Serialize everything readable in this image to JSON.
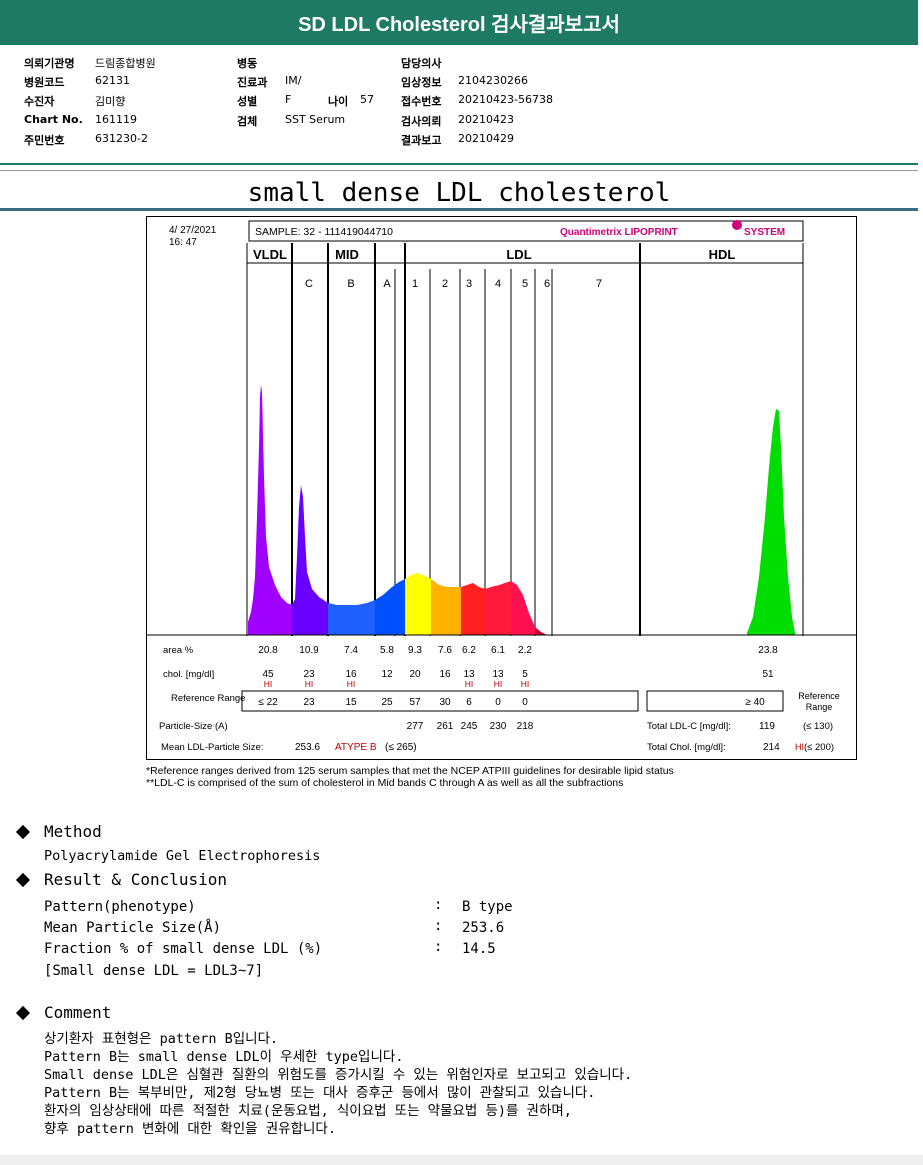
{
  "header": {
    "title": "SD LDL Cholesterol 검사결과보고서"
  },
  "info": [
    {
      "label": "의뢰기관명",
      "value": "드림종합병원"
    },
    {
      "label": "병원코드",
      "value": "62131"
    },
    {
      "label": "수진자",
      "value": "김미향"
    },
    {
      "label": "Chart No.",
      "value": "161119"
    },
    {
      "label": "주민번호",
      "value": "631230-2"
    },
    {
      "label": "병동",
      "value": ""
    },
    {
      "label": "진료과",
      "value": "IM/"
    },
    {
      "label": "성별",
      "value": "F"
    },
    {
      "label": "나이",
      "value": "57"
    },
    {
      "label": "검체",
      "value": "SST Serum"
    },
    {
      "label": "담당의사",
      "value": ""
    },
    {
      "label": "임상정보",
      "value": "2104230266"
    },
    {
      "label": "접수번호",
      "value": "20210423-56738"
    },
    {
      "label": "검사의뢰",
      "value": "20210423"
    },
    {
      "label": "결과보고",
      "value": "20210429"
    }
  ],
  "report_title": "small dense LDL cholesterol",
  "chart_data": {
    "type": "area",
    "date": "4/ 27/2021",
    "time": "16: 47",
    "sample": "SAMPLE:   32 - 111419044710",
    "brand": "Quantimetrix LIPOPRINT",
    "brand_suffix": "SYSTEM",
    "groups": [
      "VLDL",
      "MID",
      "LDL",
      "HDL"
    ],
    "bands": [
      "C",
      "B",
      "A",
      "1",
      "2",
      "3",
      "4",
      "5",
      "6",
      "7"
    ],
    "band_colors": [
      "#a000ff",
      "#3a00e8",
      "#0070ff",
      "#0050ff",
      "#ffff00",
      "#ffb000",
      "#ff1e1e",
      "#ff1e40",
      "#ff1e58",
      "#00dd00"
    ],
    "row_labels": {
      "area": "area %",
      "chol": "chol. [mg/dl]",
      "ref": "Reference Range",
      "ref_right": "Reference Range",
      "particle": "Particle-Size (A)",
      "mean": "Mean LDL-Particle Size:"
    },
    "area_pct": [
      "20.8",
      "10.9",
      "7.4",
      "5.8",
      "9.3",
      "7.6",
      "6.2",
      "6.1",
      "2.2",
      "23.8"
    ],
    "chol": [
      "45",
      "23",
      "16",
      "12",
      "20",
      "16",
      "13",
      "13",
      "5",
      "51"
    ],
    "hi_flags": [
      "HI",
      "HI",
      "HI",
      "",
      "",
      "",
      "HI",
      "HI",
      "HI",
      ""
    ],
    "ref_range": [
      "≤ 22",
      "23",
      "15",
      "25",
      "57",
      "30",
      "6",
      "0",
      "0",
      "≥ 40"
    ],
    "particle_size": [
      "277",
      "261",
      "245",
      "230",
      "218"
    ],
    "mean_size": "253.6",
    "mean_type": "ATYPE B",
    "mean_limit": "(≤ 265)",
    "total_ldl_label": "Total LDL-C [mg/dl]:",
    "total_ldl": "119",
    "total_ldl_limit": "(≤ 130)",
    "total_chol_label": "Total Chol. [mg/dl]:",
    "total_chol": "214",
    "total_chol_flag": "HI",
    "total_chol_limit": "(≤ 200)"
  },
  "footnotes": [
    "*Reference ranges derived from 125 serum samples that met the NCEP ATPIII guidelines for desirable lipid status",
    "**LDL-C is comprised of the sum of cholesterol in Mid bands C through A as well as all the subfractions"
  ],
  "method": {
    "title": "Method",
    "text": "Polyacrylamide Gel Electrophoresis"
  },
  "result": {
    "title": "Result & Conclusion",
    "rows": [
      {
        "label": "Pattern(phenotype)",
        "value": "B type"
      },
      {
        "label": "Mean Particle Size(Å)",
        "value": "253.6"
      },
      {
        "label": "Fraction % of small dense LDL (%)",
        "value": "14.5"
      }
    ],
    "note": "[Small dense LDL = LDL3~7]"
  },
  "comment": {
    "title": "Comment",
    "lines": [
      "상기환자 표현형은 pattern B입니다.",
      "Pattern B는 small dense LDL이 우세한 type입니다.",
      "Small dense LDL은 심혈관 질환의 위험도를 증가시킬 수 있는 위험인자로 보고되고 있습니다.",
      "Pattern B는 복부비만, 제2형 당뇨병 또는 대사 증후군 등에서 많이 관찰되고 있습니다.",
      "환자의 임상상태에 따른 적절한 치료(운동요법, 식이요법 또는 약물요법 등)를 권하며,",
      "향후 pattern 변화에 대한 확인을 권유합니다."
    ]
  }
}
